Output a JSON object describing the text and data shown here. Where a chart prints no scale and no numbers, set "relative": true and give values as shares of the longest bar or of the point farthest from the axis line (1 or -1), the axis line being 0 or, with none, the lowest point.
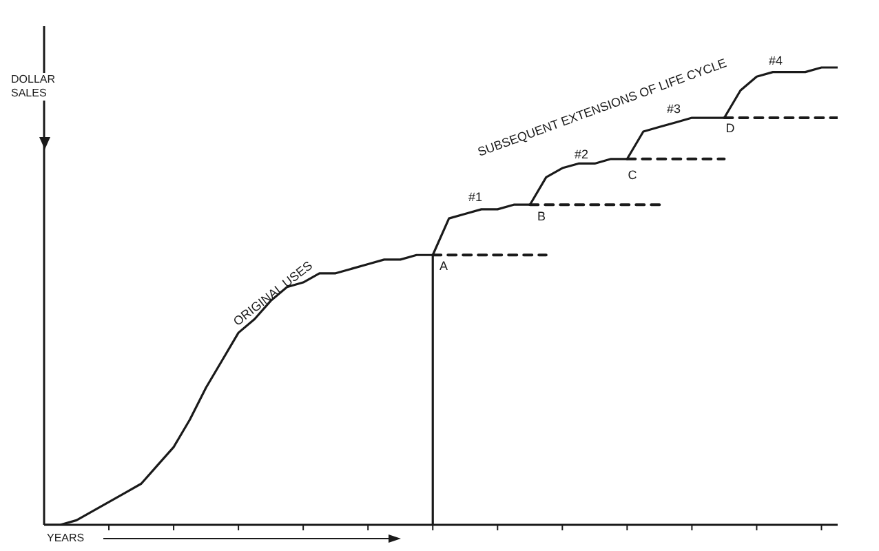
{
  "chart_data": {
    "type": "line",
    "relative": true,
    "xlabel": "YEARS",
    "ylabel": "DOLLAR SALES",
    "marker": "none",
    "line_style": "solid",
    "categories": [
      null,
      null,
      null,
      null,
      null,
      null,
      null,
      null,
      null,
      null,
      null,
      null,
      null,
      null,
      null,
      null,
      null,
      null,
      null,
      null,
      null,
      null,
      null,
      null,
      null,
      null,
      null,
      null,
      null,
      null,
      null,
      null,
      null,
      null,
      null,
      null,
      null,
      null,
      null,
      null,
      null,
      null,
      null,
      null,
      null,
      null,
      null,
      null,
      null,
      null
    ],
    "series": [
      {
        "color": "#1a1a1a",
        "values": [
          0,
          0,
          0.01,
          0.03,
          0.05,
          0.07,
          0.09,
          0.13,
          0.17,
          0.23,
          0.3,
          0.36,
          0.42,
          0.45,
          0.49,
          0.52,
          0.53,
          0.55,
          0.55,
          0.56,
          0.57,
          0.58,
          0.58,
          0.59,
          0.59,
          0.67,
          0.68,
          0.69,
          0.69,
          0.7,
          0.7,
          0.76,
          0.78,
          0.79,
          0.79,
          0.8,
          0.8,
          0.86,
          0.87,
          0.88,
          0.89,
          0.89,
          0.89,
          0.95,
          0.98,
          0.99,
          0.99,
          0.99,
          1,
          1
        ]
      },
      {
        "color": "#1a1a1a",
        "line_style": "dashed",
        "values": [
          null,
          null,
          null,
          null,
          null,
          null,
          null,
          null,
          null,
          null,
          null,
          null,
          null,
          null,
          null,
          null,
          null,
          null,
          null,
          null,
          null,
          null,
          null,
          null,
          0.59,
          0.59,
          0.59,
          0.59,
          0.59,
          0.59,
          0.59,
          0.59,
          null,
          null,
          null,
          null,
          null,
          null,
          null,
          null,
          null,
          null,
          null,
          null,
          null,
          null,
          null,
          null,
          null,
          null
        ]
      },
      {
        "color": "#1a1a1a",
        "line_style": "dashed",
        "values": [
          null,
          null,
          null,
          null,
          null,
          null,
          null,
          null,
          null,
          null,
          null,
          null,
          null,
          null,
          null,
          null,
          null,
          null,
          null,
          null,
          null,
          null,
          null,
          null,
          null,
          null,
          null,
          null,
          null,
          null,
          0.7,
          0.7,
          0.7,
          0.7,
          0.7,
          0.7,
          0.7,
          0.7,
          0.7,
          null,
          null,
          null,
          null,
          null,
          null,
          null,
          null,
          null,
          null,
          null
        ]
      },
      {
        "color": "#1a1a1a",
        "line_style": "dashed",
        "values": [
          null,
          null,
          null,
          null,
          null,
          null,
          null,
          null,
          null,
          null,
          null,
          null,
          null,
          null,
          null,
          null,
          null,
          null,
          null,
          null,
          null,
          null,
          null,
          null,
          null,
          null,
          null,
          null,
          null,
          null,
          null,
          null,
          null,
          null,
          null,
          null,
          0.8,
          0.8,
          0.8,
          0.8,
          0.8,
          0.8,
          0.8,
          null,
          null,
          null,
          null,
          null,
          null,
          null
        ]
      },
      {
        "color": "#1a1a1a",
        "line_style": "dashed",
        "values": [
          null,
          null,
          null,
          null,
          null,
          null,
          null,
          null,
          null,
          null,
          null,
          null,
          null,
          null,
          null,
          null,
          null,
          null,
          null,
          null,
          null,
          null,
          null,
          null,
          null,
          null,
          null,
          null,
          null,
          null,
          null,
          null,
          null,
          null,
          null,
          null,
          null,
          null,
          null,
          null,
          null,
          null,
          0.89,
          0.89,
          0.89,
          0.89,
          0.89,
          0.89,
          0.89,
          0.89
        ]
      }
    ],
    "annotations": [
      "ORIGINAL USES",
      "SUBSEQUENT EXTENSIONS OF LIFE CYCLE",
      "#1",
      "#2",
      "#3",
      "#4",
      "A",
      "B",
      "C",
      "D"
    ]
  }
}
